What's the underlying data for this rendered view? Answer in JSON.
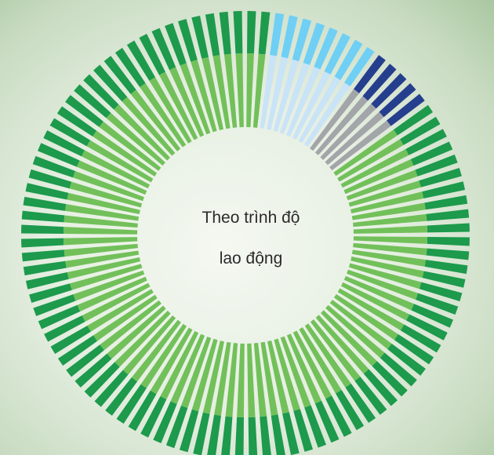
{
  "chart_data": {
    "type": "pie",
    "title": "",
    "center_label": [
      "Theo trình độ",
      "lao động"
    ],
    "segment_count": 100,
    "rings": [
      {
        "ring": "outer",
        "slices": [
          {
            "count": 8,
            "color": "#6fcff5"
          },
          {
            "count": 5,
            "color": "#253f8e"
          },
          {
            "count": 87,
            "color": "#1d9a4c"
          }
        ]
      },
      {
        "ring": "inner",
        "slices": [
          {
            "count": 8,
            "color": "#c9e3f7"
          },
          {
            "count": 5,
            "color": "#a3a6a8"
          },
          {
            "count": 87,
            "color": "#72c05a"
          }
        ]
      }
    ],
    "start_angle_deg": 7,
    "separator_color": "#ffffff"
  }
}
